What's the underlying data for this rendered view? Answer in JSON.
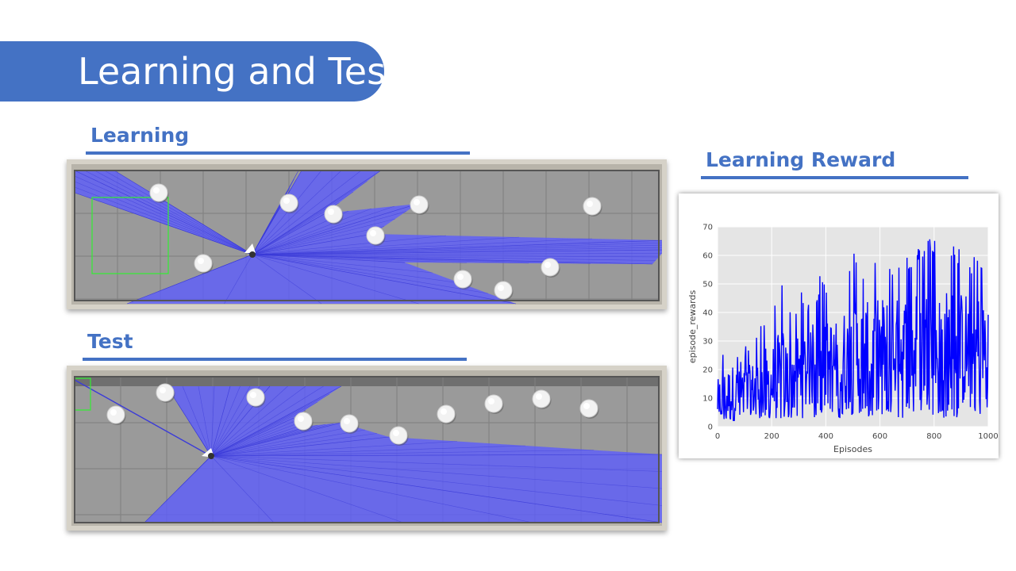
{
  "slide": {
    "title": "Learning and Test",
    "learning_label": "Learning",
    "test_label": "Test",
    "reward_label": "Learning Reward",
    "accent_color": "#4472c4",
    "laser_color": "#5b5bff"
  },
  "chart_data": {
    "type": "line",
    "title": "",
    "xlabel": "Episodes",
    "ylabel": "episode_rewards",
    "xlim": [
      0,
      1000
    ],
    "ylim": [
      0,
      70
    ],
    "xticks": [
      0,
      200,
      400,
      600,
      800,
      1000
    ],
    "yticks": [
      0,
      10,
      20,
      30,
      40,
      50,
      60,
      70
    ],
    "grid": true,
    "series": [
      {
        "color": "#0000ff",
        "x": [
          0,
          20,
          40,
          60,
          80,
          100,
          120,
          140,
          160,
          180,
          200,
          220,
          240,
          260,
          280,
          300,
          320,
          340,
          360,
          380,
          400,
          420,
          440,
          460,
          480,
          500,
          520,
          540,
          560,
          580,
          600,
          620,
          640,
          660,
          680,
          700,
          720,
          740,
          760,
          780,
          800,
          820,
          840,
          860,
          880,
          900,
          920,
          940,
          960,
          980,
          1000
        ],
        "mean": [
          9,
          10,
          11,
          11,
          12,
          12,
          13,
          13,
          14,
          14,
          15,
          16,
          17,
          17,
          18,
          18,
          19,
          20,
          20,
          21,
          21,
          22,
          22,
          23,
          23,
          24,
          24,
          25,
          25,
          25,
          26,
          26,
          26,
          27,
          27,
          27,
          27,
          28,
          28,
          28,
          28,
          28,
          28,
          28,
          28,
          27,
          27,
          27,
          27,
          27,
          27
        ],
        "max": [
          23,
          28,
          30,
          34,
          25,
          30,
          28,
          34,
          36,
          44,
          40,
          48,
          54,
          40,
          45,
          46,
          50,
          42,
          40,
          55,
          48,
          51,
          46,
          57,
          54,
          61,
          63,
          55,
          57,
          59,
          61,
          60,
          58,
          55,
          58,
          62,
          56,
          64,
          63,
          66,
          66,
          58,
          60,
          65,
          63,
          62,
          64,
          58,
          62,
          58,
          64
        ],
        "min": [
          2,
          1,
          2,
          2,
          2,
          3,
          3,
          3,
          3,
          3,
          3,
          3,
          3,
          3,
          3,
          3,
          3,
          3,
          3,
          3,
          3,
          3,
          3,
          3,
          3,
          3,
          3,
          3,
          3,
          3,
          3,
          3,
          3,
          3,
          3,
          3,
          3,
          3,
          3,
          3,
          3,
          3,
          3,
          3,
          3,
          3,
          3,
          3,
          3,
          3,
          3
        ]
      }
    ]
  }
}
